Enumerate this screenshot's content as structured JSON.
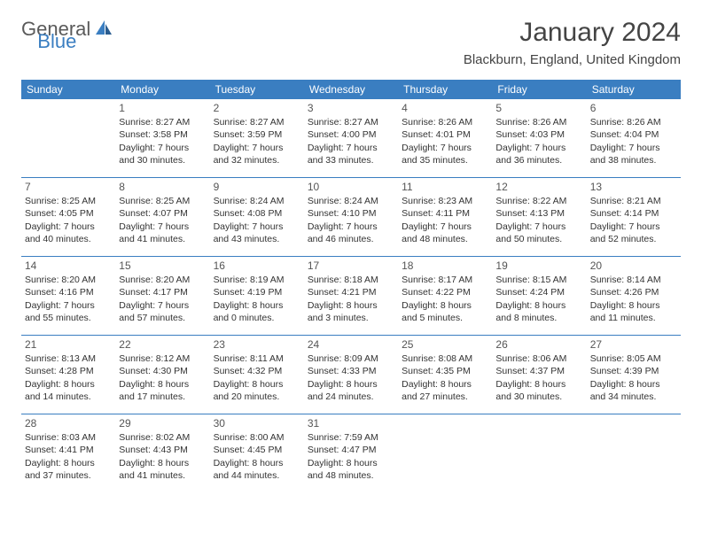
{
  "logo": {
    "part1": "General",
    "part2": "Blue"
  },
  "title": "January 2024",
  "location": "Blackburn, England, United Kingdom",
  "header_bg": "#3a7ec1",
  "header_fg": "#ffffff",
  "rule_color": "#3a7ec1",
  "weekdays": [
    "Sunday",
    "Monday",
    "Tuesday",
    "Wednesday",
    "Thursday",
    "Friday",
    "Saturday"
  ],
  "weeks": [
    [
      null,
      {
        "n": "1",
        "sr": "Sunrise: 8:27 AM",
        "ss": "Sunset: 3:58 PM",
        "d1": "Daylight: 7 hours",
        "d2": "and 30 minutes."
      },
      {
        "n": "2",
        "sr": "Sunrise: 8:27 AM",
        "ss": "Sunset: 3:59 PM",
        "d1": "Daylight: 7 hours",
        "d2": "and 32 minutes."
      },
      {
        "n": "3",
        "sr": "Sunrise: 8:27 AM",
        "ss": "Sunset: 4:00 PM",
        "d1": "Daylight: 7 hours",
        "d2": "and 33 minutes."
      },
      {
        "n": "4",
        "sr": "Sunrise: 8:26 AM",
        "ss": "Sunset: 4:01 PM",
        "d1": "Daylight: 7 hours",
        "d2": "and 35 minutes."
      },
      {
        "n": "5",
        "sr": "Sunrise: 8:26 AM",
        "ss": "Sunset: 4:03 PM",
        "d1": "Daylight: 7 hours",
        "d2": "and 36 minutes."
      },
      {
        "n": "6",
        "sr": "Sunrise: 8:26 AM",
        "ss": "Sunset: 4:04 PM",
        "d1": "Daylight: 7 hours",
        "d2": "and 38 minutes."
      }
    ],
    [
      {
        "n": "7",
        "sr": "Sunrise: 8:25 AM",
        "ss": "Sunset: 4:05 PM",
        "d1": "Daylight: 7 hours",
        "d2": "and 40 minutes."
      },
      {
        "n": "8",
        "sr": "Sunrise: 8:25 AM",
        "ss": "Sunset: 4:07 PM",
        "d1": "Daylight: 7 hours",
        "d2": "and 41 minutes."
      },
      {
        "n": "9",
        "sr": "Sunrise: 8:24 AM",
        "ss": "Sunset: 4:08 PM",
        "d1": "Daylight: 7 hours",
        "d2": "and 43 minutes."
      },
      {
        "n": "10",
        "sr": "Sunrise: 8:24 AM",
        "ss": "Sunset: 4:10 PM",
        "d1": "Daylight: 7 hours",
        "d2": "and 46 minutes."
      },
      {
        "n": "11",
        "sr": "Sunrise: 8:23 AM",
        "ss": "Sunset: 4:11 PM",
        "d1": "Daylight: 7 hours",
        "d2": "and 48 minutes."
      },
      {
        "n": "12",
        "sr": "Sunrise: 8:22 AM",
        "ss": "Sunset: 4:13 PM",
        "d1": "Daylight: 7 hours",
        "d2": "and 50 minutes."
      },
      {
        "n": "13",
        "sr": "Sunrise: 8:21 AM",
        "ss": "Sunset: 4:14 PM",
        "d1": "Daylight: 7 hours",
        "d2": "and 52 minutes."
      }
    ],
    [
      {
        "n": "14",
        "sr": "Sunrise: 8:20 AM",
        "ss": "Sunset: 4:16 PM",
        "d1": "Daylight: 7 hours",
        "d2": "and 55 minutes."
      },
      {
        "n": "15",
        "sr": "Sunrise: 8:20 AM",
        "ss": "Sunset: 4:17 PM",
        "d1": "Daylight: 7 hours",
        "d2": "and 57 minutes."
      },
      {
        "n": "16",
        "sr": "Sunrise: 8:19 AM",
        "ss": "Sunset: 4:19 PM",
        "d1": "Daylight: 8 hours",
        "d2": "and 0 minutes."
      },
      {
        "n": "17",
        "sr": "Sunrise: 8:18 AM",
        "ss": "Sunset: 4:21 PM",
        "d1": "Daylight: 8 hours",
        "d2": "and 3 minutes."
      },
      {
        "n": "18",
        "sr": "Sunrise: 8:17 AM",
        "ss": "Sunset: 4:22 PM",
        "d1": "Daylight: 8 hours",
        "d2": "and 5 minutes."
      },
      {
        "n": "19",
        "sr": "Sunrise: 8:15 AM",
        "ss": "Sunset: 4:24 PM",
        "d1": "Daylight: 8 hours",
        "d2": "and 8 minutes."
      },
      {
        "n": "20",
        "sr": "Sunrise: 8:14 AM",
        "ss": "Sunset: 4:26 PM",
        "d1": "Daylight: 8 hours",
        "d2": "and 11 minutes."
      }
    ],
    [
      {
        "n": "21",
        "sr": "Sunrise: 8:13 AM",
        "ss": "Sunset: 4:28 PM",
        "d1": "Daylight: 8 hours",
        "d2": "and 14 minutes."
      },
      {
        "n": "22",
        "sr": "Sunrise: 8:12 AM",
        "ss": "Sunset: 4:30 PM",
        "d1": "Daylight: 8 hours",
        "d2": "and 17 minutes."
      },
      {
        "n": "23",
        "sr": "Sunrise: 8:11 AM",
        "ss": "Sunset: 4:32 PM",
        "d1": "Daylight: 8 hours",
        "d2": "and 20 minutes."
      },
      {
        "n": "24",
        "sr": "Sunrise: 8:09 AM",
        "ss": "Sunset: 4:33 PM",
        "d1": "Daylight: 8 hours",
        "d2": "and 24 minutes."
      },
      {
        "n": "25",
        "sr": "Sunrise: 8:08 AM",
        "ss": "Sunset: 4:35 PM",
        "d1": "Daylight: 8 hours",
        "d2": "and 27 minutes."
      },
      {
        "n": "26",
        "sr": "Sunrise: 8:06 AM",
        "ss": "Sunset: 4:37 PM",
        "d1": "Daylight: 8 hours",
        "d2": "and 30 minutes."
      },
      {
        "n": "27",
        "sr": "Sunrise: 8:05 AM",
        "ss": "Sunset: 4:39 PM",
        "d1": "Daylight: 8 hours",
        "d2": "and 34 minutes."
      }
    ],
    [
      {
        "n": "28",
        "sr": "Sunrise: 8:03 AM",
        "ss": "Sunset: 4:41 PM",
        "d1": "Daylight: 8 hours",
        "d2": "and 37 minutes."
      },
      {
        "n": "29",
        "sr": "Sunrise: 8:02 AM",
        "ss": "Sunset: 4:43 PM",
        "d1": "Daylight: 8 hours",
        "d2": "and 41 minutes."
      },
      {
        "n": "30",
        "sr": "Sunrise: 8:00 AM",
        "ss": "Sunset: 4:45 PM",
        "d1": "Daylight: 8 hours",
        "d2": "and 44 minutes."
      },
      {
        "n": "31",
        "sr": "Sunrise: 7:59 AM",
        "ss": "Sunset: 4:47 PM",
        "d1": "Daylight: 8 hours",
        "d2": "and 48 minutes."
      },
      null,
      null,
      null
    ]
  ]
}
